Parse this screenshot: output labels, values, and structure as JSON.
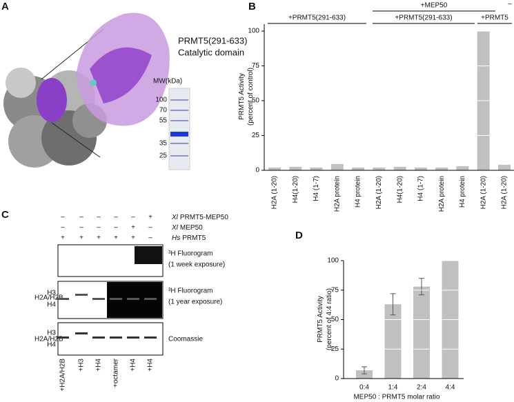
{
  "panels": {
    "A": {
      "letter": "A",
      "title": "PRMT5(291-633)",
      "subtitle": "Catalytic domain",
      "gel_label": "MW(kDa)",
      "markers": [
        "100",
        "70",
        "55",
        "35",
        "25"
      ]
    },
    "C": {
      "letter": "C",
      "conditions": [
        {
          "species": "Xl",
          "name": "PRMT5-MEP50",
          "signs": [
            "–",
            "–",
            "–",
            "–",
            "–",
            "+"
          ]
        },
        {
          "species": "Xl",
          "name": "MEP50",
          "signs": [
            "–",
            "–",
            "–",
            "–",
            "+",
            "–"
          ]
        },
        {
          "species": "Hs",
          "name": "PRMT5",
          "signs": [
            "+",
            "+",
            "+",
            "+",
            "+",
            "–"
          ]
        }
      ],
      "blots": [
        {
          "label": [
            "³H Fluorogram",
            "(1 week exposure)"
          ],
          "bands": []
        },
        {
          "label": [
            "³H Fluorogram",
            "(1 year exposure)"
          ],
          "bands": [
            "H2A/H2B",
            "H3",
            "H4"
          ]
        },
        {
          "label": [
            "Coomassie"
          ],
          "bands": [
            "H2A/H2B",
            "H3",
            "H4"
          ]
        }
      ],
      "lanes": [
        "+H2A/H2B",
        "+H3",
        "+H4",
        "+octamer",
        "+H4",
        "+H4"
      ]
    }
  },
  "chart_data": [
    {
      "type": "bar",
      "letter": "B",
      "y_label": [
        "PRMT5 Activity",
        "(percent of control)"
      ],
      "group_labels": [
        "+PRMT5(291-633)",
        "+MEP50",
        "+PRMT5(291-633)",
        "+PRMT5",
        "–"
      ],
      "categories": [
        "H2A (1-20)",
        "H4(1-20)",
        "H4 (1-7)",
        "H2A protein",
        "H4 protein",
        "H2A (1-20)",
        "H4(1-20)",
        "H4 (1-7)",
        "H2A protein",
        "H4 protein",
        "H2A (1-20)",
        "H2A (1-20)"
      ],
      "values": [
        2,
        2.5,
        2,
        4.5,
        2,
        2,
        2.5,
        2,
        2,
        3,
        100,
        4
      ],
      "color": "#c0c0c0",
      "ylim": [
        0,
        105
      ],
      "yticks": [
        0,
        25,
        50,
        75,
        100
      ],
      "grid": true
    },
    {
      "type": "bar",
      "letter": "D",
      "y_label": [
        "PRMT5 Activity",
        "(percent of 4:4 ratio)"
      ],
      "x_label": "MEP50 : PRMT5 molar ratio",
      "categories": [
        "0:4",
        "1:4",
        "2:4",
        "4:4"
      ],
      "values": [
        7,
        63,
        78,
        100
      ],
      "errors": [
        3,
        9,
        7,
        0
      ],
      "color": "#c0c0c0",
      "ylim": [
        0,
        100
      ],
      "yticks": [
        0,
        25,
        50,
        75,
        100
      ],
      "grid": true
    }
  ]
}
